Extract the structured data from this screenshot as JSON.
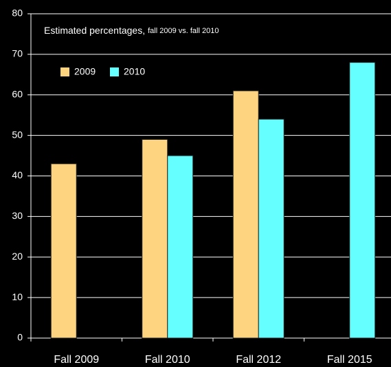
{
  "chart_data": {
    "type": "bar",
    "title": "Estimated percentages,",
    "subtitle": "fall 2009 vs. fall 2010",
    "categories": [
      "Fall 2009",
      "Fall 2010",
      "Fall 2012",
      "Fall 2015"
    ],
    "series": [
      {
        "name": "2009",
        "color": "#ffd480",
        "values": [
          43,
          49,
          61,
          null
        ]
      },
      {
        "name": "2010",
        "color": "#66ffff",
        "values": [
          null,
          45,
          54,
          68
        ]
      }
    ],
    "ylim": [
      0,
      80
    ],
    "yticks": [
      0,
      10,
      20,
      30,
      40,
      50,
      60,
      70,
      80
    ],
    "grid": true
  }
}
